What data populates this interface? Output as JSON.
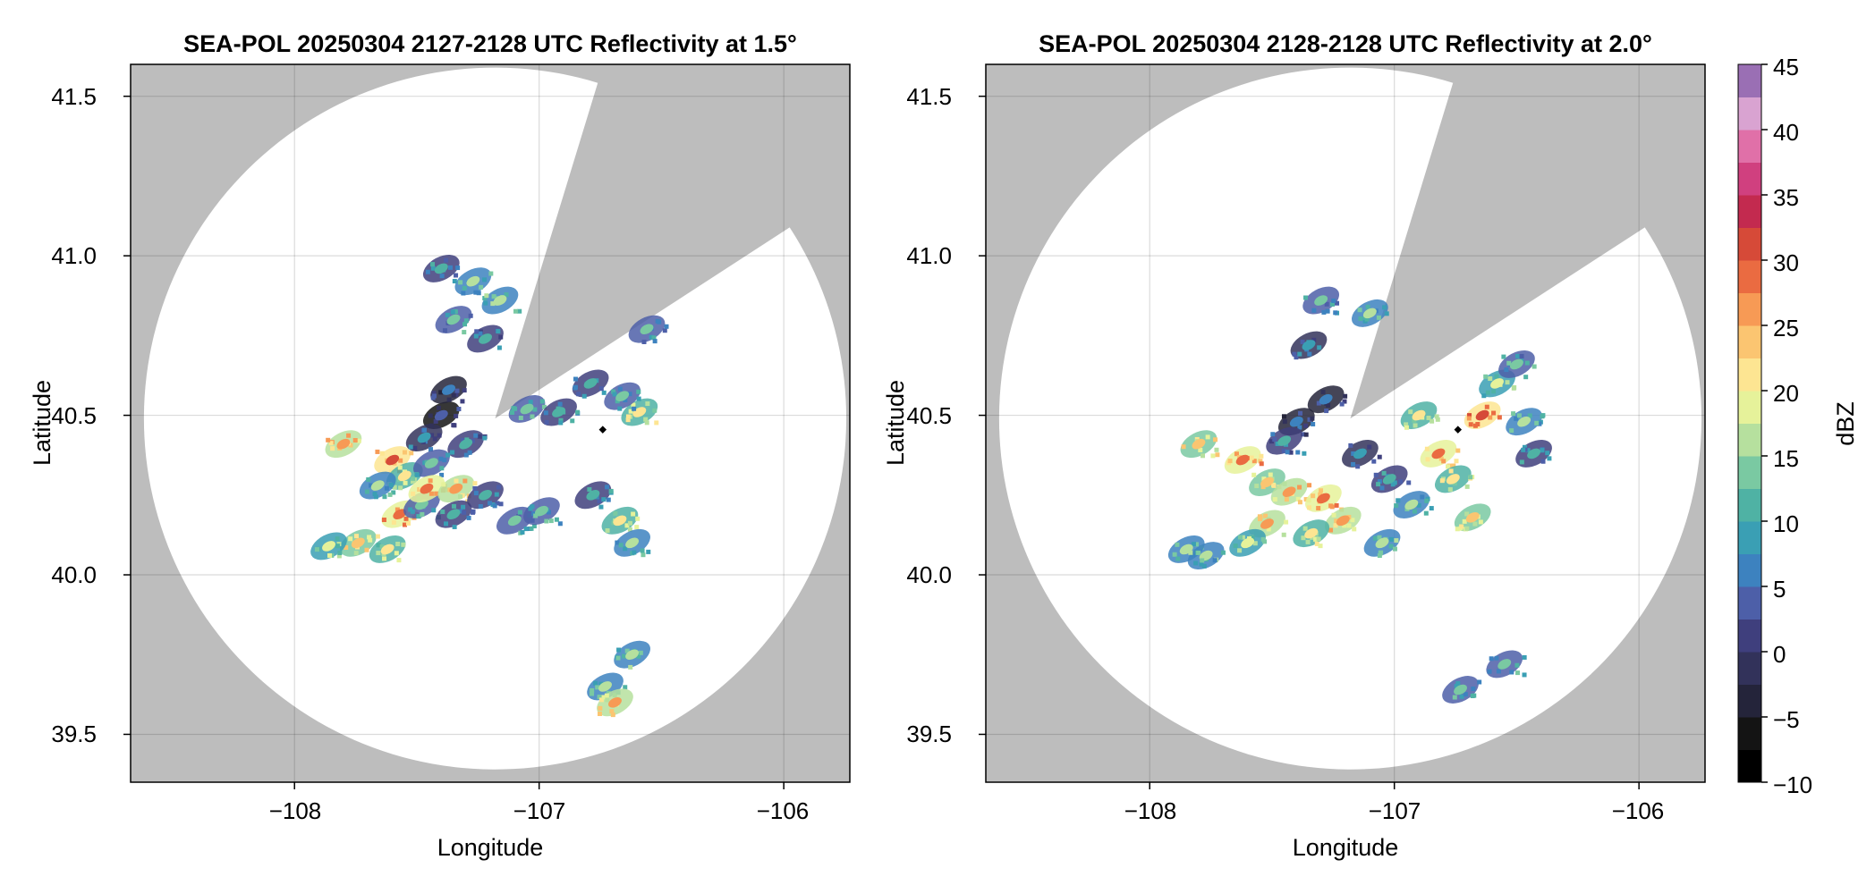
{
  "chart_data": [
    {
      "type": "heatmap",
      "title": "SEA-POL 20250304 2127-2128 UTC Reflectivity at 1.5°",
      "xlabel": "Longitude",
      "ylabel": "Latitude",
      "xlim": [
        -108.67,
        -105.73
      ],
      "ylim": [
        39.35,
        41.6
      ],
      "xticks": [
        -108,
        -107,
        -106
      ],
      "yticks": [
        39.5,
        40.0,
        40.5,
        41.0,
        41.5
      ],
      "xtick_labels": [
        "−108",
        "−107",
        "−106"
      ],
      "ytick_labels": [
        "39.5",
        "40.0",
        "40.5",
        "41.0",
        "41.5"
      ],
      "grid": true,
      "radar_center": [
        -107.18,
        40.49
      ],
      "radar_range_deg_lat": 1.1,
      "beam_blockage_sector_deg": [
        17,
        57
      ],
      "marker": [
        -106.74,
        40.455
      ],
      "background_color": "#bdbdbd",
      "cells": [
        {
          "lon": -107.6,
          "lat": 40.36,
          "dbz": 30
        },
        {
          "lon": -107.55,
          "lat": 40.31,
          "dbz": 22
        },
        {
          "lon": -107.66,
          "lat": 40.28,
          "dbz": 15
        },
        {
          "lon": -107.57,
          "lat": 40.19,
          "dbz": 29
        },
        {
          "lon": -107.48,
          "lat": 40.22,
          "dbz": 14
        },
        {
          "lon": -107.8,
          "lat": 40.41,
          "dbz": 27
        },
        {
          "lon": -107.74,
          "lat": 40.1,
          "dbz": 24
        },
        {
          "lon": -107.86,
          "lat": 40.09,
          "dbz": 19
        },
        {
          "lon": -107.62,
          "lat": 40.08,
          "dbz": 21
        },
        {
          "lon": -107.4,
          "lat": 40.5,
          "dbz": 4
        },
        {
          "lon": -107.47,
          "lat": 40.43,
          "dbz": 9
        },
        {
          "lon": -107.37,
          "lat": 40.58,
          "dbz": 6
        },
        {
          "lon": -107.3,
          "lat": 40.41,
          "dbz": 11
        },
        {
          "lon": -107.44,
          "lat": 40.35,
          "dbz": 13
        },
        {
          "lon": -107.46,
          "lat": 40.27,
          "dbz": 28
        },
        {
          "lon": -107.34,
          "lat": 40.27,
          "dbz": 26
        },
        {
          "lon": -107.35,
          "lat": 40.19,
          "dbz": 12
        },
        {
          "lon": -107.22,
          "lat": 40.25,
          "dbz": 10
        },
        {
          "lon": -107.1,
          "lat": 40.17,
          "dbz": 13
        },
        {
          "lon": -106.99,
          "lat": 40.2,
          "dbz": 14
        },
        {
          "lon": -106.78,
          "lat": 40.25,
          "dbz": 12
        },
        {
          "lon": -106.67,
          "lat": 40.17,
          "dbz": 20
        },
        {
          "lon": -106.62,
          "lat": 40.1,
          "dbz": 16
        },
        {
          "lon": -106.59,
          "lat": 40.51,
          "dbz": 22
        },
        {
          "lon": -106.66,
          "lat": 40.56,
          "dbz": 13
        },
        {
          "lon": -106.79,
          "lat": 40.6,
          "dbz": 12
        },
        {
          "lon": -106.56,
          "lat": 40.77,
          "dbz": 13
        },
        {
          "lon": -107.16,
          "lat": 40.86,
          "dbz": 17
        },
        {
          "lon": -107.35,
          "lat": 40.8,
          "dbz": 13
        },
        {
          "lon": -107.27,
          "lat": 40.92,
          "dbz": 15
        },
        {
          "lon": -107.4,
          "lat": 40.96,
          "dbz": 12
        },
        {
          "lon": -107.22,
          "lat": 40.74,
          "dbz": 10
        },
        {
          "lon": -107.05,
          "lat": 40.52,
          "dbz": 14
        },
        {
          "lon": -106.92,
          "lat": 40.51,
          "dbz": 11
        },
        {
          "lon": -106.62,
          "lat": 39.75,
          "dbz": 17
        },
        {
          "lon": -106.73,
          "lat": 39.65,
          "dbz": 16
        },
        {
          "lon": -106.69,
          "lat": 39.6,
          "dbz": 25
        }
      ]
    },
    {
      "type": "heatmap",
      "title": "SEA-POL 20250304 2128-2128 UTC Reflectivity at 2.0°",
      "xlabel": "Longitude",
      "ylabel": "Latitude",
      "xlim": [
        -108.67,
        -105.73
      ],
      "ylim": [
        39.35,
        41.6
      ],
      "xticks": [
        -108,
        -107,
        -106
      ],
      "yticks": [
        39.5,
        40.0,
        40.5,
        41.0,
        41.5
      ],
      "xtick_labels": [
        "−108",
        "−107",
        "−106"
      ],
      "ytick_labels": [
        "39.5",
        "40.0",
        "40.5",
        "41.0",
        "41.5"
      ],
      "grid": true,
      "radar_center": [
        -107.18,
        40.49
      ],
      "radar_range_deg_lat": 1.1,
      "beam_blockage_sector_deg": [
        17,
        57
      ],
      "marker": [
        -106.74,
        40.455
      ],
      "background_color": "#bdbdbd",
      "cells": [
        {
          "lon": -107.62,
          "lat": 40.36,
          "dbz": 29
        },
        {
          "lon": -107.52,
          "lat": 40.29,
          "dbz": 24
        },
        {
          "lon": -107.43,
          "lat": 40.26,
          "dbz": 27
        },
        {
          "lon": -107.29,
          "lat": 40.24,
          "dbz": 28
        },
        {
          "lon": -107.21,
          "lat": 40.17,
          "dbz": 26
        },
        {
          "lon": -107.34,
          "lat": 40.13,
          "dbz": 22
        },
        {
          "lon": -107.52,
          "lat": 40.16,
          "dbz": 25
        },
        {
          "lon": -107.6,
          "lat": 40.1,
          "dbz": 18
        },
        {
          "lon": -107.77,
          "lat": 40.06,
          "dbz": 16
        },
        {
          "lon": -107.4,
          "lat": 40.48,
          "dbz": 6
        },
        {
          "lon": -107.28,
          "lat": 40.55,
          "dbz": 5
        },
        {
          "lon": -107.45,
          "lat": 40.42,
          "dbz": 10
        },
        {
          "lon": -107.14,
          "lat": 40.38,
          "dbz": 9
        },
        {
          "lon": -107.02,
          "lat": 40.3,
          "dbz": 12
        },
        {
          "lon": -106.93,
          "lat": 40.22,
          "dbz": 15
        },
        {
          "lon": -107.05,
          "lat": 40.1,
          "dbz": 16
        },
        {
          "lon": -106.82,
          "lat": 40.38,
          "dbz": 28
        },
        {
          "lon": -106.76,
          "lat": 40.3,
          "dbz": 22
        },
        {
          "lon": -106.68,
          "lat": 40.18,
          "dbz": 24
        },
        {
          "lon": -106.64,
          "lat": 40.5,
          "dbz": 32
        },
        {
          "lon": -106.58,
          "lat": 40.6,
          "dbz": 18
        },
        {
          "lon": -106.5,
          "lat": 40.66,
          "dbz": 13
        },
        {
          "lon": -106.47,
          "lat": 40.48,
          "dbz": 15
        },
        {
          "lon": -106.43,
          "lat": 40.38,
          "dbz": 11
        },
        {
          "lon": -106.9,
          "lat": 40.5,
          "dbz": 20
        },
        {
          "lon": -107.1,
          "lat": 40.82,
          "dbz": 15
        },
        {
          "lon": -107.3,
          "lat": 40.86,
          "dbz": 13
        },
        {
          "lon": -107.35,
          "lat": 40.72,
          "dbz": 9
        },
        {
          "lon": -107.8,
          "lat": 40.41,
          "dbz": 24
        },
        {
          "lon": -107.85,
          "lat": 40.08,
          "dbz": 17
        },
        {
          "lon": -106.55,
          "lat": 39.72,
          "dbz": 14
        },
        {
          "lon": -106.73,
          "lat": 39.64,
          "dbz": 13
        }
      ]
    }
  ],
  "colorbar": {
    "label": "dBZ",
    "range": [
      -10,
      45
    ],
    "ticks": [
      "45",
      "40",
      "35",
      "30",
      "25",
      "20",
      "15",
      "10",
      "5",
      "0",
      "−5",
      "−10"
    ],
    "levels": [
      -10,
      -7.5,
      -5,
      -2.5,
      0,
      2.5,
      5,
      7.5,
      10,
      12.5,
      15,
      17.5,
      20,
      22.5,
      25,
      27.5,
      30,
      32.5,
      35,
      37.5,
      40,
      42.5,
      45
    ]
  }
}
